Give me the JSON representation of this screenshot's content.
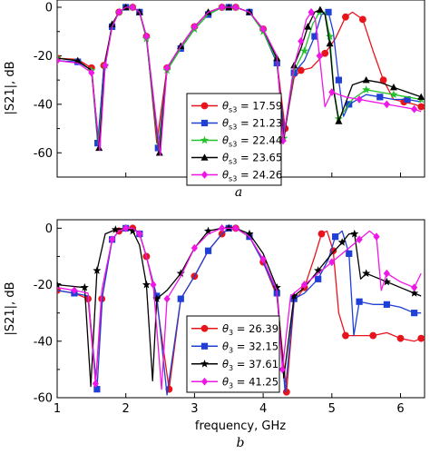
{
  "chart_data": [
    {
      "type": "line",
      "panel_label": "a",
      "ylabel": "|S21|, dB",
      "xlim": [
        1,
        6.35
      ],
      "ylim": [
        -70,
        3
      ],
      "yticks": [
        0,
        -20,
        -40,
        -60
      ],
      "xticks": [],
      "grid": false,
      "legend_position": "inside lower-right",
      "legend_symbol": "θ",
      "legend_subscript": "s3",
      "series": [
        {
          "name": "17.59",
          "legend_value": "17.59",
          "color": "#e8141c",
          "marker": "circle",
          "x": [
            1.0,
            1.3,
            1.5,
            1.6,
            1.68,
            1.8,
            1.9,
            2.0,
            2.1,
            2.2,
            2.3,
            2.45,
            2.6,
            2.8,
            3.0,
            3.2,
            3.4,
            3.5,
            3.6,
            3.8,
            4.0,
            4.2,
            4.32,
            4.45,
            4.55,
            4.7,
            4.9,
            5.05,
            5.2,
            5.3,
            5.45,
            5.6,
            5.75,
            5.9,
            6.05,
            6.2,
            6.3
          ],
          "y": [
            -21,
            -21.5,
            -25,
            -55,
            -24,
            -8,
            -2,
            0,
            0,
            -2,
            -12,
            -56,
            -25,
            -16,
            -8,
            -2,
            0,
            0,
            0,
            -2,
            -9,
            -22,
            -50,
            -29,
            -26,
            -25,
            -19,
            -13,
            -4,
            -2,
            -5,
            -18,
            -30,
            -38,
            -39,
            -40,
            -41
          ]
        },
        {
          "name": "21.23",
          "legend_value": "21.23",
          "color": "#1f3fd6",
          "marker": "square",
          "x": [
            1.0,
            1.3,
            1.5,
            1.59,
            1.68,
            1.8,
            1.9,
            2.0,
            2.1,
            2.2,
            2.3,
            2.47,
            2.6,
            2.8,
            3.0,
            3.2,
            3.4,
            3.5,
            3.6,
            3.8,
            4.0,
            4.2,
            4.31,
            4.45,
            4.6,
            4.75,
            4.85,
            4.95,
            5.02,
            5.1,
            5.17,
            5.25,
            5.5,
            5.7,
            5.9,
            6.1,
            6.3
          ],
          "y": [
            -22,
            -22.5,
            -26,
            -56,
            -25,
            -8,
            -2,
            0,
            0,
            -2,
            -13,
            -58,
            -26,
            -17,
            -9,
            -3,
            0,
            0,
            0,
            -2,
            -10,
            -23,
            -52,
            -27,
            -22,
            -12,
            -3,
            -2,
            -10,
            -30,
            -45,
            -40,
            -36,
            -37,
            -38,
            -38,
            -39
          ]
        },
        {
          "name": "22.44",
          "legend_value": "22.44",
          "color": "#22c22a",
          "marker": "star",
          "x": [
            1.0,
            1.3,
            1.5,
            1.6,
            1.7,
            1.8,
            1.9,
            2.0,
            2.1,
            2.2,
            2.3,
            2.48,
            2.6,
            2.8,
            3.0,
            3.2,
            3.4,
            3.5,
            3.6,
            3.8,
            4.0,
            4.2,
            4.3,
            4.45,
            4.6,
            4.72,
            4.82,
            4.9,
            4.97,
            5.03,
            5.1,
            5.3,
            5.5,
            5.7,
            5.9,
            6.1,
            6.3
          ],
          "y": [
            -21,
            -22,
            -26,
            -57,
            -24,
            -8,
            -2,
            0,
            0,
            -2,
            -13,
            -59,
            -26,
            -17,
            -9,
            -3,
            0,
            0,
            0,
            -2,
            -10,
            -22,
            -54,
            -26,
            -18,
            -7,
            -2,
            -2,
            -12,
            -34,
            -46,
            -38,
            -34,
            -35,
            -36,
            -37,
            -38
          ]
        },
        {
          "name": "23.65",
          "legend_value": "23.65",
          "color": "#000000",
          "marker": "triangle",
          "x": [
            1.0,
            1.3,
            1.5,
            1.61,
            1.7,
            1.8,
            1.9,
            2.0,
            2.1,
            2.2,
            2.3,
            2.49,
            2.6,
            2.8,
            3.0,
            3.2,
            3.4,
            3.5,
            3.6,
            3.8,
            4.0,
            4.2,
            4.3,
            4.45,
            4.55,
            4.65,
            4.75,
            4.83,
            4.9,
            4.97,
            5.03,
            5.1,
            5.3,
            5.5,
            5.7,
            5.9,
            6.1,
            6.3
          ],
          "y": [
            -21,
            -22,
            -26,
            -58,
            -23,
            -7,
            -2,
            0,
            0,
            -2,
            -12,
            -60,
            -25,
            -16,
            -8,
            -2,
            0,
            0,
            0,
            -2,
            -9,
            -21,
            -55,
            -24,
            -17,
            -8,
            -2,
            -1,
            -3,
            -15,
            -35,
            -47,
            -32,
            -30,
            -31,
            -33,
            -35,
            -37
          ]
        },
        {
          "name": "24.26",
          "legend_value": "24.26",
          "color": "#f016e6",
          "marker": "diamond",
          "x": [
            1.0,
            1.3,
            1.5,
            1.62,
            1.7,
            1.8,
            1.9,
            2.0,
            2.1,
            2.2,
            2.3,
            2.5,
            2.6,
            2.8,
            3.0,
            3.2,
            3.4,
            3.5,
            3.6,
            3.8,
            4.0,
            4.2,
            4.29,
            4.45,
            4.55,
            4.63,
            4.7,
            4.76,
            4.82,
            4.9,
            5.0,
            5.2,
            5.4,
            5.6,
            5.8,
            6.0,
            6.2,
            6.3
          ],
          "y": [
            -22,
            -23,
            -27,
            -59,
            -24,
            -8,
            -2,
            0,
            0,
            -2,
            -12,
            -61,
            -25,
            -16,
            -8,
            -2,
            0,
            0,
            0,
            -2,
            -9,
            -20,
            -55,
            -24,
            -14,
            -5,
            -2,
            -5,
            -20,
            -41,
            -35,
            -37,
            -38,
            -39,
            -40,
            -41,
            -42,
            -43
          ]
        }
      ]
    },
    {
      "type": "line",
      "panel_label": "b",
      "xlabel": "frequency, GHz",
      "ylabel": "|S21|, dB",
      "xlim": [
        1,
        6.35
      ],
      "ylim": [
        -60,
        3
      ],
      "xticks": [
        1,
        2,
        3,
        4,
        5,
        6
      ],
      "yticks": [
        0,
        -20,
        -40,
        -60
      ],
      "grid": false,
      "legend_position": "inside lower-left",
      "legend_symbol": "θ",
      "legend_subscript": "3",
      "series": [
        {
          "name": "26.39",
          "legend_value": "26.39",
          "color": "#e8141c",
          "marker": "circle",
          "x": [
            1.0,
            1.25,
            1.45,
            1.56,
            1.65,
            1.8,
            1.9,
            2.0,
            2.1,
            2.2,
            2.3,
            2.45,
            2.63,
            2.8,
            3.0,
            3.2,
            3.4,
            3.5,
            3.6,
            3.8,
            4.0,
            4.2,
            4.34,
            4.45,
            4.6,
            4.75,
            4.85,
            4.93,
            5.02,
            5.1,
            5.2,
            5.4,
            5.6,
            5.8,
            6.0,
            6.2,
            6.3
          ],
          "y": [
            -22,
            -23,
            -25,
            -55,
            -25,
            -4,
            -1,
            0,
            0,
            -2,
            -10,
            -26,
            -57,
            -25,
            -17,
            -8,
            -2,
            0,
            0,
            -3,
            -12,
            -24,
            -58,
            -26,
            -21,
            -10,
            -2,
            -1,
            -8,
            -30,
            -38,
            -38,
            -38,
            -37,
            -39,
            -40,
            -39
          ]
        },
        {
          "name": "32.15",
          "legend_value": "32.15",
          "color": "#1f3fd6",
          "marker": "square",
          "x": [
            1.0,
            1.25,
            1.45,
            1.58,
            1.66,
            1.8,
            1.9,
            2.0,
            2.1,
            2.2,
            2.3,
            2.45,
            2.6,
            2.8,
            3.0,
            3.2,
            3.4,
            3.5,
            3.6,
            3.8,
            4.0,
            4.2,
            4.32,
            4.45,
            4.6,
            4.8,
            4.95,
            5.05,
            5.15,
            5.25,
            5.32,
            5.4,
            5.6,
            5.8,
            6.0,
            6.2,
            6.3
          ],
          "y": [
            -22,
            -23,
            -24,
            -57,
            -24,
            -4,
            -1,
            0,
            0,
            -2,
            -10,
            -24,
            -59,
            -25,
            -17,
            -8,
            -2,
            0,
            0,
            -3,
            -12,
            -23,
            -58,
            -25,
            -23,
            -18,
            -11,
            -3,
            -1,
            -9,
            -38,
            -26,
            -27,
            -27,
            -28,
            -30,
            -30
          ]
        },
        {
          "name": "37.61",
          "legend_value": "37.61",
          "color": "#000000",
          "marker": "star",
          "x": [
            1.0,
            1.2,
            1.4,
            1.49,
            1.58,
            1.7,
            1.85,
            2.0,
            2.1,
            2.2,
            2.3,
            2.39,
            2.45,
            2.6,
            2.8,
            3.0,
            3.2,
            3.4,
            3.5,
            3.6,
            3.8,
            4.0,
            4.2,
            4.3,
            4.45,
            4.6,
            4.8,
            5.0,
            5.15,
            5.25,
            5.33,
            5.42,
            5.5,
            5.6,
            5.8,
            6.0,
            6.2,
            6.3
          ],
          "y": [
            -20,
            -20.5,
            -21,
            -56,
            -15,
            -2,
            -0.5,
            0,
            -1,
            -6,
            -20,
            -54,
            -25,
            -22,
            -16,
            -7,
            -1,
            0,
            0,
            0,
            -2,
            -9,
            -21,
            -53,
            -24,
            -21,
            -15,
            -9,
            -5,
            -2,
            -2,
            -18,
            -16,
            -17,
            -19,
            -21,
            -23,
            -24
          ]
        },
        {
          "name": "41.25",
          "legend_value": "41.25",
          "color": "#f016e6",
          "marker": "diamond",
          "x": [
            1.0,
            1.25,
            1.45,
            1.56,
            1.65,
            1.8,
            1.9,
            2.0,
            2.1,
            2.2,
            2.3,
            2.4,
            2.52,
            2.6,
            2.8,
            3.0,
            3.2,
            3.4,
            3.5,
            3.6,
            3.8,
            4.0,
            4.2,
            4.28,
            4.4,
            4.6,
            4.8,
            5.0,
            5.2,
            5.4,
            5.55,
            5.65,
            5.72,
            5.8,
            6.0,
            6.2,
            6.3
          ],
          "y": [
            -21,
            -22,
            -23,
            -55,
            -22,
            -4,
            -1,
            0,
            0,
            -2,
            -10,
            -20,
            -57,
            -25,
            -17,
            -7,
            -2,
            0,
            0,
            0,
            -3,
            -11,
            -22,
            -50,
            -24,
            -20,
            -16,
            -12,
            -8,
            -4,
            -1,
            -3,
            -22,
            -16,
            -19,
            -21,
            -16
          ]
        }
      ]
    }
  ]
}
